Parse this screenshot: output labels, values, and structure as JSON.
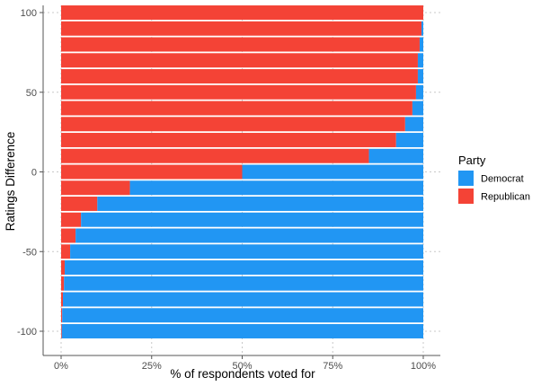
{
  "chart_data": {
    "type": "bar",
    "orientation": "horizontal",
    "stacked": "percent",
    "title": "",
    "xlabel": "% of respondents voted for",
    "ylabel": "Ratings Difference",
    "xlim": [
      0,
      1
    ],
    "xticks": [
      "0%",
      "25%",
      "50%",
      "75%",
      "100%"
    ],
    "ylim": [
      -105,
      100
    ],
    "yticks": [
      100,
      50,
      0,
      -50,
      -100
    ],
    "grid": true,
    "legend": {
      "title": "Party",
      "position": "right",
      "entries": [
        "Democrat",
        "Republican"
      ]
    },
    "colors": {
      "Democrat": "#2196F3",
      "Republican": "#F44336"
    },
    "categories": [
      100,
      90,
      80,
      70,
      60,
      50,
      40,
      30,
      20,
      10,
      0,
      -10,
      -20,
      -30,
      -40,
      -50,
      -60,
      -70,
      -80,
      -90,
      -100
    ],
    "series": [
      {
        "name": "Republican",
        "values": [
          1.0,
          0.995,
          0.99,
          0.985,
          0.985,
          0.98,
          0.97,
          0.95,
          0.925,
          0.85,
          0.5,
          0.19,
          0.1,
          0.055,
          0.04,
          0.025,
          0.01,
          0.008,
          0.005,
          0.003,
          0.002
        ]
      },
      {
        "name": "Democrat",
        "values": [
          0.0,
          0.005,
          0.01,
          0.015,
          0.015,
          0.02,
          0.03,
          0.05,
          0.075,
          0.15,
          0.5,
          0.81,
          0.9,
          0.945,
          0.96,
          0.975,
          0.99,
          0.992,
          0.995,
          0.997,
          0.998
        ]
      }
    ]
  }
}
